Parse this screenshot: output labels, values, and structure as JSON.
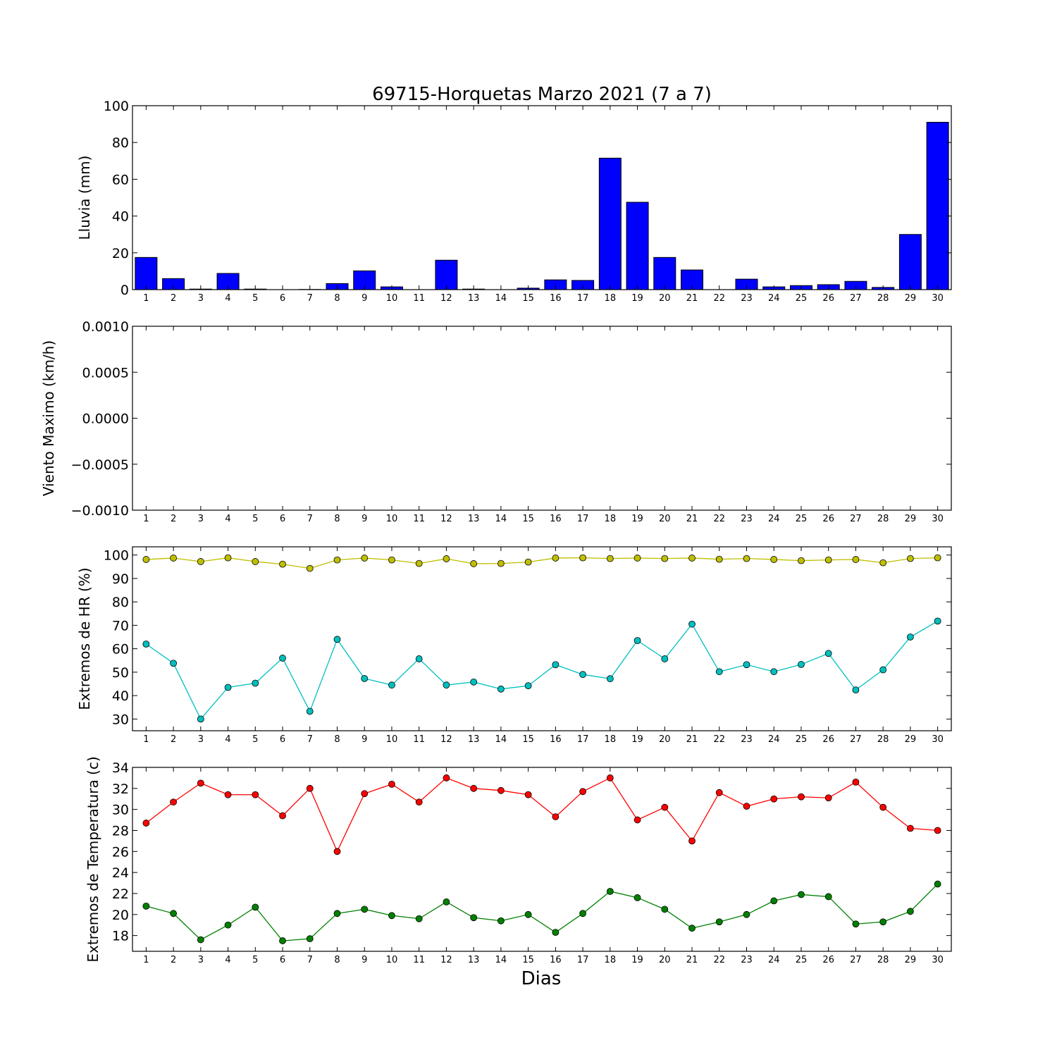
{
  "title": "69715-Horquetas Marzo 2021  (7 a 7)",
  "xlabel": "Dias",
  "days": [
    "1",
    "2",
    "3",
    "4",
    "5",
    "6",
    "7",
    "8",
    "9",
    "10",
    "11",
    "12",
    "13",
    "14",
    "15",
    "16",
    "17",
    "18",
    "19",
    "20",
    "21",
    "22",
    "23",
    "24",
    "25",
    "26",
    "27",
    "28",
    "29",
    "30"
  ],
  "colors": {
    "bar": "#0000ff",
    "hr_max": "#bfbf00",
    "hr_min": "#00bfbf",
    "t_max": "#ff0000",
    "t_min": "#008000"
  },
  "chart_data": [
    {
      "type": "bar",
      "ylabel": "Lluvia (mm)",
      "ylim": [
        0,
        100
      ],
      "yticks": [
        "0",
        "20",
        "40",
        "60",
        "80",
        "100"
      ],
      "x": [
        1,
        2,
        3,
        4,
        5,
        6,
        7,
        8,
        9,
        10,
        11,
        12,
        13,
        14,
        15,
        16,
        17,
        18,
        19,
        20,
        21,
        22,
        23,
        24,
        25,
        26,
        27,
        28,
        29,
        30
      ],
      "values": [
        17.5,
        6.0,
        0.3,
        8.8,
        0.3,
        0,
        0.1,
        3.3,
        10.2,
        1.5,
        0,
        16.0,
        0.3,
        0,
        0.8,
        5.3,
        5.0,
        71.5,
        47.5,
        17.5,
        10.7,
        0,
        5.7,
        1.5,
        2.2,
        2.7,
        4.5,
        1.2,
        30.0,
        91.0
      ]
    },
    {
      "type": "line",
      "ylabel": "Viento Maximo (km/h)",
      "ylim": [
        -0.001,
        0.001
      ],
      "yticks": [
        "−0.0010",
        "−0.0005",
        "0.0000",
        "0.0005",
        "0.0010"
      ],
      "series": []
    },
    {
      "type": "line",
      "ylabel": "Extremos de HR (%)",
      "ylim": [
        25,
        103.5
      ],
      "yticks": [
        "30",
        "40",
        "50",
        "60",
        "70",
        "80",
        "90",
        "100"
      ],
      "x": [
        1,
        2,
        3,
        4,
        5,
        6,
        7,
        8,
        9,
        10,
        11,
        12,
        13,
        14,
        15,
        16,
        17,
        18,
        19,
        20,
        21,
        22,
        23,
        24,
        25,
        26,
        27,
        28,
        29,
        30
      ],
      "series": [
        {
          "values": [
            98.1,
            98.7,
            97.2,
            98.8,
            97.2,
            96.1,
            94.3,
            97.9,
            98.7,
            97.9,
            96.4,
            98.4,
            96.3,
            96.4,
            97.0,
            98.7,
            98.8,
            98.5,
            98.7,
            98.5,
            98.7,
            98.2,
            98.5,
            98.1,
            97.6,
            97.9,
            98.1,
            96.7,
            98.5,
            98.8
          ]
        },
        {
          "values": [
            62.0,
            53.8,
            30.0,
            43.5,
            45.3,
            56.0,
            33.3,
            64.0,
            47.3,
            44.5,
            55.7,
            44.5,
            45.8,
            42.8,
            44.2,
            53.2,
            49.0,
            47.2,
            63.5,
            55.7,
            70.5,
            50.2,
            53.2,
            50.2,
            53.3,
            58.0,
            42.4,
            51.0,
            65.0,
            71.8
          ]
        }
      ]
    },
    {
      "type": "line",
      "ylabel": "Extremos de Temperatura (c)",
      "ylim": [
        16.5,
        34
      ],
      "yticks": [
        "18",
        "20",
        "22",
        "24",
        "26",
        "28",
        "30",
        "32",
        "34"
      ],
      "x": [
        1,
        2,
        3,
        4,
        5,
        6,
        7,
        8,
        9,
        10,
        11,
        12,
        13,
        14,
        15,
        16,
        17,
        18,
        19,
        20,
        21,
        22,
        23,
        24,
        25,
        26,
        27,
        28,
        29,
        30
      ],
      "series": [
        {
          "values": [
            28.7,
            30.7,
            32.5,
            31.4,
            31.4,
            29.4,
            32.0,
            26.0,
            31.5,
            32.4,
            30.7,
            33.0,
            32.0,
            31.8,
            31.4,
            29.3,
            31.7,
            33.0,
            29.0,
            30.2,
            27.0,
            31.6,
            30.3,
            31.0,
            31.2,
            31.1,
            32.6,
            30.2,
            28.2,
            28.0
          ]
        },
        {
          "values": [
            20.8,
            20.1,
            17.6,
            19.0,
            20.7,
            17.5,
            17.7,
            20.1,
            20.5,
            19.9,
            19.6,
            21.2,
            19.7,
            19.4,
            20.0,
            18.3,
            20.1,
            22.2,
            21.6,
            20.5,
            18.7,
            19.3,
            20.0,
            21.3,
            21.9,
            21.7,
            19.1,
            19.3,
            20.3,
            22.9
          ]
        }
      ]
    }
  ]
}
